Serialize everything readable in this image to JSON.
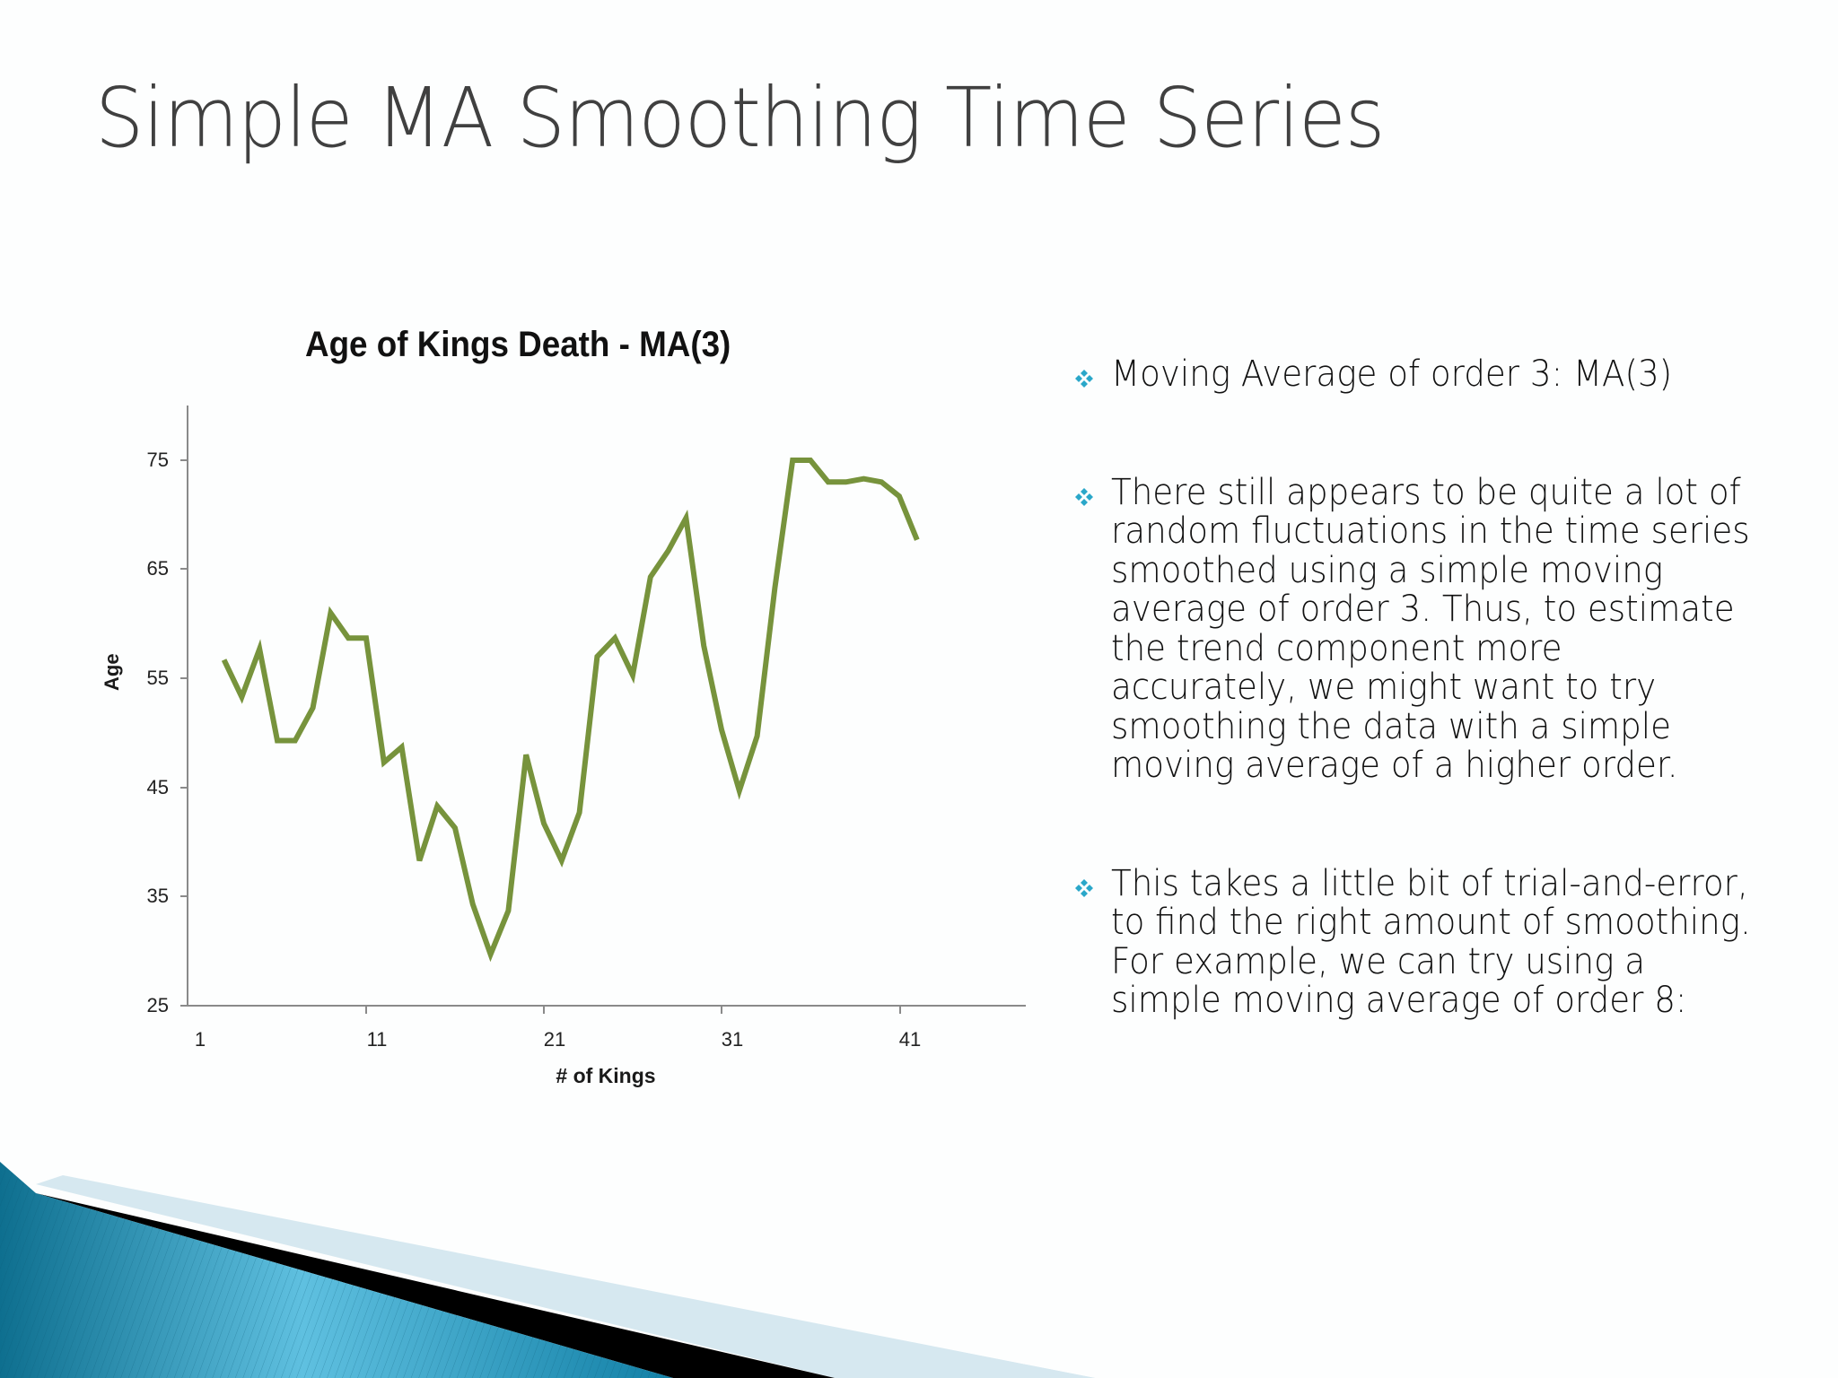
{
  "slide": {
    "title": "Simple MA Smoothing Time Series",
    "bullets": [
      {
        "icon": "diamond-bullet-icon",
        "text": "Moving Average of order 3: MA(3)"
      },
      {
        "icon": "diamond-bullet-icon",
        "text": "There still appears to be quite a lot of random fluctuations in the time series smoothed using a simple moving average of order 3. Thus, to estimate the trend component more accurately, we might want to try smoothing the data with a simple moving average of a higher order."
      },
      {
        "icon": "diamond-bullet-icon",
        "text": "This takes a little bit of trial-and-error, to find the right amount of smoothing. For example, we can try using a simple moving average of order 8:"
      }
    ],
    "colors": {
      "title": "#404040",
      "bullet_marker": "#2aa7c9",
      "line": "#77933c",
      "decor_blue": "#1a8db3",
      "decor_light": "#d6e8f0"
    }
  },
  "chart_data": {
    "type": "line",
    "title": "Age of Kings Death - MA(3)",
    "xlabel": "# of Kings",
    "ylabel": "Age",
    "x_ticks": [
      "1",
      "11",
      "21",
      "31",
      "41"
    ],
    "y_ticks": [
      "25",
      "35",
      "45",
      "55",
      "65",
      "75"
    ],
    "xlim": [
      1,
      48
    ],
    "ylim": [
      25,
      80
    ],
    "grid": false,
    "legend": null,
    "series": [
      {
        "name": "MA(3)",
        "color": "#77933c",
        "x": [
          3,
          4,
          5,
          6,
          7,
          8,
          9,
          10,
          11,
          12,
          13,
          14,
          15,
          16,
          17,
          18,
          19,
          20,
          21,
          22,
          23,
          24,
          25,
          26,
          27,
          28,
          29,
          30,
          31,
          32,
          33,
          34,
          35,
          36,
          37,
          38,
          39,
          40,
          41,
          42
        ],
        "values": [
          56.7,
          53.3,
          57.7,
          49.3,
          49.3,
          52.3,
          61.0,
          58.7,
          58.7,
          47.3,
          48.7,
          38.3,
          43.3,
          41.3,
          34.3,
          29.7,
          33.7,
          48.0,
          41.7,
          38.3,
          42.7,
          57.0,
          58.7,
          55.3,
          64.3,
          66.7,
          69.7,
          58.0,
          50.3,
          44.7,
          49.7,
          63.3,
          75.0,
          75.0,
          73.0,
          73.0,
          73.3,
          73.0,
          71.7,
          67.7
        ]
      }
    ]
  }
}
